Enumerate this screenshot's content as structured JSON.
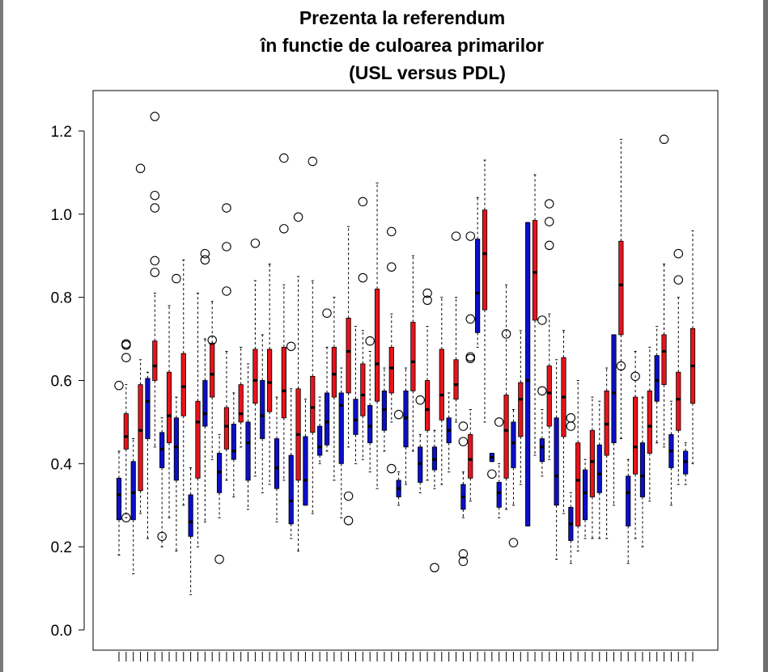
{
  "title_lines": [
    "Prezenta la referendum",
    "în functie de culoarea primarilor",
    "(USL versus PDL)"
  ],
  "colors": {
    "usl": "#e8131a",
    "pdl": "#0b0fc8",
    "median": "#000000",
    "outlier": "#000000"
  },
  "chart_data": {
    "type": "boxplot",
    "title": "Prezenta la referendum în functie de culoarea primarilor (USL versus PDL)",
    "ylim": [
      -0.05,
      1.3
    ],
    "yticks": [
      0.0,
      0.2,
      0.4,
      0.6,
      0.8,
      1.0,
      1.2
    ],
    "ytick_labels": [
      "0.0",
      "0.2",
      "0.4",
      "0.6",
      "0.8",
      "1.0",
      "1.2"
    ],
    "xlabel": "",
    "ylabel": "",
    "boxes": [
      {
        "c": "pdl",
        "wlo": 0.18,
        "q1": 0.265,
        "med": 0.325,
        "q3": 0.365,
        "whi": 0.43,
        "out": [
          0.588
        ]
      },
      {
        "c": "usl",
        "wlo": 0.27,
        "q1": 0.435,
        "med": 0.465,
        "q3": 0.52,
        "whi": 0.59,
        "out": [
          0.27,
          0.655,
          0.685,
          0.688
        ]
      },
      {
        "c": "pdl",
        "wlo": 0.135,
        "q1": 0.265,
        "med": 0.33,
        "q3": 0.405,
        "whi": 0.46,
        "out": []
      },
      {
        "c": "usl",
        "wlo": 0.28,
        "q1": 0.335,
        "med": 0.48,
        "q3": 0.59,
        "whi": 0.65,
        "out": [
          1.11
        ]
      },
      {
        "c": "pdl",
        "wlo": 0.22,
        "q1": 0.46,
        "med": 0.55,
        "q3": 0.605,
        "whi": 0.62,
        "out": []
      },
      {
        "c": "usl",
        "wlo": 0.44,
        "q1": 0.6,
        "med": 0.635,
        "q3": 0.695,
        "whi": 0.81,
        "out": [
          0.86,
          0.888,
          1.015,
          1.045,
          1.235
        ]
      },
      {
        "c": "pdl",
        "wlo": 0.2,
        "q1": 0.39,
        "med": 0.435,
        "q3": 0.475,
        "whi": 0.51,
        "out": [
          0.225
        ]
      },
      {
        "c": "usl",
        "wlo": 0.27,
        "q1": 0.45,
        "med": 0.515,
        "q3": 0.62,
        "whi": 0.78,
        "out": []
      },
      {
        "c": "pdl",
        "wlo": 0.19,
        "q1": 0.36,
        "med": 0.44,
        "q3": 0.51,
        "whi": 0.56,
        "out": [
          0.845
        ]
      },
      {
        "c": "usl",
        "wlo": 0.3,
        "q1": 0.515,
        "med": 0.585,
        "q3": 0.665,
        "whi": 0.89,
        "out": []
      },
      {
        "c": "pdl",
        "wlo": 0.085,
        "q1": 0.225,
        "med": 0.26,
        "q3": 0.325,
        "whi": 0.39,
        "out": []
      },
      {
        "c": "usl",
        "wlo": 0.2,
        "q1": 0.365,
        "med": 0.5,
        "q3": 0.55,
        "whi": 0.81,
        "out": []
      },
      {
        "c": "pdl",
        "wlo": 0.26,
        "q1": 0.49,
        "med": 0.52,
        "q3": 0.6,
        "whi": 0.7,
        "out": [
          0.89,
          0.905
        ]
      },
      {
        "c": "usl",
        "wlo": 0.41,
        "q1": 0.56,
        "med": 0.615,
        "q3": 0.69,
        "whi": 0.79,
        "out": [
          0.697
        ]
      },
      {
        "c": "pdl",
        "wlo": 0.27,
        "q1": 0.33,
        "med": 0.38,
        "q3": 0.425,
        "whi": 0.47,
        "out": [
          0.17
        ]
      },
      {
        "c": "usl",
        "wlo": 0.36,
        "q1": 0.435,
        "med": 0.49,
        "q3": 0.535,
        "whi": 0.67,
        "out": [
          0.815,
          0.922,
          1.015
        ]
      },
      {
        "c": "pdl",
        "wlo": 0.32,
        "q1": 0.41,
        "med": 0.43,
        "q3": 0.495,
        "whi": 0.57,
        "out": []
      },
      {
        "c": "usl",
        "wlo": 0.44,
        "q1": 0.5,
        "med": 0.52,
        "q3": 0.59,
        "whi": 0.68,
        "out": []
      },
      {
        "c": "pdl",
        "wlo": 0.29,
        "q1": 0.36,
        "med": 0.45,
        "q3": 0.5,
        "whi": 0.64,
        "out": []
      },
      {
        "c": "usl",
        "wlo": 0.37,
        "q1": 0.545,
        "med": 0.6,
        "q3": 0.675,
        "whi": 0.84,
        "out": [
          0.93
        ]
      },
      {
        "c": "pdl",
        "wlo": 0.33,
        "q1": 0.46,
        "med": 0.515,
        "q3": 0.6,
        "whi": 0.71,
        "out": []
      },
      {
        "c": "usl",
        "wlo": 0.35,
        "q1": 0.525,
        "med": 0.595,
        "q3": 0.675,
        "whi": 0.88,
        "out": []
      },
      {
        "c": "pdl",
        "wlo": 0.26,
        "q1": 0.34,
        "med": 0.39,
        "q3": 0.46,
        "whi": 0.56,
        "out": []
      },
      {
        "c": "usl",
        "wlo": 0.36,
        "q1": 0.51,
        "med": 0.575,
        "q3": 0.68,
        "whi": 0.83,
        "out": [
          0.965,
          1.135
        ]
      },
      {
        "c": "pdl",
        "wlo": 0.22,
        "q1": 0.255,
        "med": 0.31,
        "q3": 0.42,
        "whi": 0.58,
        "out": [
          0.682
        ]
      },
      {
        "c": "usl",
        "wlo": 0.19,
        "q1": 0.36,
        "med": 0.47,
        "q3": 0.58,
        "whi": 0.85,
        "out": [
          0.993
        ]
      },
      {
        "c": "pdl",
        "wlo": 0.3,
        "q1": 0.3,
        "med": 0.36,
        "q3": 0.465,
        "whi": 0.555,
        "out": []
      },
      {
        "c": "usl",
        "wlo": 0.28,
        "q1": 0.475,
        "med": 0.535,
        "q3": 0.61,
        "whi": 0.84,
        "out": [
          1.127
        ]
      },
      {
        "c": "pdl",
        "wlo": 0.4,
        "q1": 0.42,
        "med": 0.44,
        "q3": 0.49,
        "whi": 0.56,
        "out": []
      },
      {
        "c": "pdl",
        "wlo": 0.43,
        "q1": 0.445,
        "med": 0.5,
        "q3": 0.57,
        "whi": 0.68,
        "out": [
          0.762
        ]
      },
      {
        "c": "usl",
        "wlo": 0.36,
        "q1": 0.56,
        "med": 0.615,
        "q3": 0.68,
        "whi": 0.8,
        "out": []
      },
      {
        "c": "pdl",
        "wlo": 0.27,
        "q1": 0.4,
        "med": 0.54,
        "q3": 0.57,
        "whi": 0.63,
        "out": []
      },
      {
        "c": "usl",
        "wlo": 0.44,
        "q1": 0.57,
        "med": 0.67,
        "q3": 0.75,
        "whi": 0.97,
        "out": [
          0.263,
          0.322
        ]
      },
      {
        "c": "pdl",
        "wlo": 0.4,
        "q1": 0.47,
        "med": 0.505,
        "q3": 0.555,
        "whi": 0.73,
        "out": []
      },
      {
        "c": "usl",
        "wlo": 0.41,
        "q1": 0.515,
        "med": 0.565,
        "q3": 0.64,
        "whi": 0.72,
        "out": [
          0.847,
          1.03
        ]
      },
      {
        "c": "pdl",
        "wlo": 0.38,
        "q1": 0.45,
        "med": 0.49,
        "q3": 0.54,
        "whi": 0.67,
        "out": [
          0.695
        ]
      },
      {
        "c": "usl",
        "wlo": 0.34,
        "q1": 0.55,
        "med": 0.64,
        "q3": 0.82,
        "whi": 1.075,
        "out": []
      },
      {
        "c": "pdl",
        "wlo": 0.43,
        "q1": 0.48,
        "med": 0.53,
        "q3": 0.575,
        "whi": 0.63,
        "out": []
      },
      {
        "c": "usl",
        "wlo": 0.5,
        "q1": 0.57,
        "med": 0.63,
        "q3": 0.68,
        "whi": 0.76,
        "out": [
          0.388,
          0.873,
          0.958
        ]
      },
      {
        "c": "pdl",
        "wlo": 0.3,
        "q1": 0.32,
        "med": 0.34,
        "q3": 0.36,
        "whi": 0.38,
        "out": [
          0.518
        ]
      },
      {
        "c": "pdl",
        "wlo": 0.35,
        "q1": 0.44,
        "med": 0.51,
        "q3": 0.575,
        "whi": 0.63,
        "out": []
      },
      {
        "c": "usl",
        "wlo": 0.43,
        "q1": 0.575,
        "med": 0.645,
        "q3": 0.74,
        "whi": 0.9,
        "out": []
      },
      {
        "c": "pdl",
        "wlo": 0.33,
        "q1": 0.355,
        "med": 0.4,
        "q3": 0.44,
        "whi": 0.47,
        "out": [
          0.553
        ]
      },
      {
        "c": "usl",
        "wlo": 0.36,
        "q1": 0.48,
        "med": 0.53,
        "q3": 0.6,
        "whi": 0.73,
        "out": [
          0.793,
          0.81
        ]
      },
      {
        "c": "pdl",
        "wlo": 0.34,
        "q1": 0.385,
        "med": 0.41,
        "q3": 0.44,
        "whi": 0.48,
        "out": [
          0.15
        ]
      },
      {
        "c": "usl",
        "wlo": 0.35,
        "q1": 0.505,
        "med": 0.565,
        "q3": 0.675,
        "whi": 0.8,
        "out": []
      },
      {
        "c": "pdl",
        "wlo": 0.38,
        "q1": 0.45,
        "med": 0.48,
        "q3": 0.51,
        "whi": 0.57,
        "out": []
      },
      {
        "c": "usl",
        "wlo": 0.5,
        "q1": 0.555,
        "med": 0.59,
        "q3": 0.65,
        "whi": 0.8,
        "out": [
          0.947
        ]
      },
      {
        "c": "pdl",
        "wlo": 0.27,
        "q1": 0.29,
        "med": 0.32,
        "q3": 0.35,
        "whi": 0.38,
        "out": [
          0.165,
          0.183,
          0.453,
          0.49
        ]
      },
      {
        "c": "usl",
        "wlo": 0.31,
        "q1": 0.365,
        "med": 0.41,
        "q3": 0.47,
        "whi": 0.53,
        "out": [
          0.653,
          0.657,
          0.748,
          0.947
        ]
      },
      {
        "c": "pdl",
        "wlo": 0.68,
        "q1": 0.715,
        "med": 0.81,
        "q3": 0.94,
        "whi": 1.04,
        "out": []
      },
      {
        "c": "usl",
        "wlo": 0.5,
        "q1": 0.77,
        "med": 0.905,
        "q3": 1.01,
        "whi": 1.13,
        "out": []
      },
      {
        "c": "pdl",
        "wlo": 0.405,
        "q1": 0.405,
        "med": 0.415,
        "q3": 0.425,
        "whi": 0.425,
        "out": [
          0.375
        ]
      },
      {
        "c": "pdl",
        "wlo": 0.27,
        "q1": 0.295,
        "med": 0.33,
        "q3": 0.355,
        "whi": 0.4,
        "out": [
          0.5
        ]
      },
      {
        "c": "usl",
        "wlo": 0.29,
        "q1": 0.365,
        "med": 0.48,
        "q3": 0.565,
        "whi": 0.83,
        "out": [
          0.712
        ]
      },
      {
        "c": "pdl",
        "wlo": 0.3,
        "q1": 0.39,
        "med": 0.45,
        "q3": 0.5,
        "whi": 0.53,
        "out": [
          0.21
        ]
      },
      {
        "c": "usl",
        "wlo": 0.35,
        "q1": 0.465,
        "med": 0.555,
        "q3": 0.595,
        "whi": 0.72,
        "out": []
      },
      {
        "c": "pdl",
        "wlo": 0.25,
        "q1": 0.25,
        "med": 0.6,
        "q3": 0.98,
        "whi": 0.98,
        "out": []
      },
      {
        "c": "usl",
        "wlo": 0.42,
        "q1": 0.745,
        "med": 0.86,
        "q3": 0.985,
        "whi": 1.095,
        "out": []
      },
      {
        "c": "pdl",
        "wlo": 0.37,
        "q1": 0.405,
        "med": 0.44,
        "q3": 0.46,
        "whi": 0.53,
        "out": [
          0.575,
          0.745
        ]
      },
      {
        "c": "usl",
        "wlo": 0.41,
        "q1": 0.49,
        "med": 0.57,
        "q3": 0.635,
        "whi": 0.76,
        "out": [
          0.925,
          0.982,
          1.025
        ]
      },
      {
        "c": "pdl",
        "wlo": 0.17,
        "q1": 0.3,
        "med": 0.37,
        "q3": 0.51,
        "whi": 0.65,
        "out": []
      },
      {
        "c": "usl",
        "wlo": 0.28,
        "q1": 0.465,
        "med": 0.56,
        "q3": 0.655,
        "whi": 0.72,
        "out": []
      },
      {
        "c": "pdl",
        "wlo": 0.16,
        "q1": 0.215,
        "med": 0.255,
        "q3": 0.295,
        "whi": 0.33,
        "out": [
          0.49,
          0.51
        ]
      },
      {
        "c": "usl",
        "wlo": 0.19,
        "q1": 0.25,
        "med": 0.36,
        "q3": 0.45,
        "whi": 0.6,
        "out": []
      },
      {
        "c": "pdl",
        "wlo": 0.22,
        "q1": 0.265,
        "med": 0.33,
        "q3": 0.385,
        "whi": 0.41,
        "out": []
      },
      {
        "c": "usl",
        "wlo": 0.22,
        "q1": 0.32,
        "med": 0.405,
        "q3": 0.48,
        "whi": 0.56,
        "out": []
      },
      {
        "c": "pdl",
        "wlo": 0.22,
        "q1": 0.33,
        "med": 0.375,
        "q3": 0.445,
        "whi": 0.55,
        "out": []
      },
      {
        "c": "usl",
        "wlo": 0.22,
        "q1": 0.42,
        "med": 0.495,
        "q3": 0.575,
        "whi": 0.63,
        "out": []
      },
      {
        "c": "pdl",
        "wlo": 0.3,
        "q1": 0.45,
        "med": 0.57,
        "q3": 0.71,
        "whi": 0.71,
        "out": []
      },
      {
        "c": "usl",
        "wlo": 0.46,
        "q1": 0.71,
        "med": 0.83,
        "q3": 0.935,
        "whi": 1.18,
        "out": [
          0.635
        ]
      },
      {
        "c": "pdl",
        "wlo": 0.16,
        "q1": 0.25,
        "med": 0.33,
        "q3": 0.37,
        "whi": 0.41,
        "out": []
      },
      {
        "c": "usl",
        "wlo": 0.22,
        "q1": 0.375,
        "med": 0.44,
        "q3": 0.56,
        "whi": 0.67,
        "out": [
          0.61
        ]
      },
      {
        "c": "pdl",
        "wlo": 0.2,
        "q1": 0.32,
        "med": 0.37,
        "q3": 0.45,
        "whi": 0.56,
        "out": []
      },
      {
        "c": "usl",
        "wlo": 0.31,
        "q1": 0.425,
        "med": 0.49,
        "q3": 0.575,
        "whi": 0.68,
        "out": []
      },
      {
        "c": "pdl",
        "wlo": 0.45,
        "q1": 0.55,
        "med": 0.6,
        "q3": 0.66,
        "whi": 0.73,
        "out": []
      },
      {
        "c": "usl",
        "wlo": 0.44,
        "q1": 0.59,
        "med": 0.67,
        "q3": 0.71,
        "whi": 0.88,
        "out": [
          1.18
        ]
      },
      {
        "c": "pdl",
        "wlo": 0.3,
        "q1": 0.39,
        "med": 0.43,
        "q3": 0.47,
        "whi": 0.55,
        "out": []
      },
      {
        "c": "usl",
        "wlo": 0.35,
        "q1": 0.48,
        "med": 0.555,
        "q3": 0.62,
        "whi": 0.8,
        "out": [
          0.842,
          0.905
        ]
      },
      {
        "c": "pdl",
        "wlo": 0.35,
        "q1": 0.375,
        "med": 0.405,
        "q3": 0.43,
        "whi": 0.45,
        "out": []
      },
      {
        "c": "usl",
        "wlo": 0.4,
        "q1": 0.545,
        "med": 0.635,
        "q3": 0.725,
        "whi": 0.96,
        "out": []
      }
    ]
  }
}
